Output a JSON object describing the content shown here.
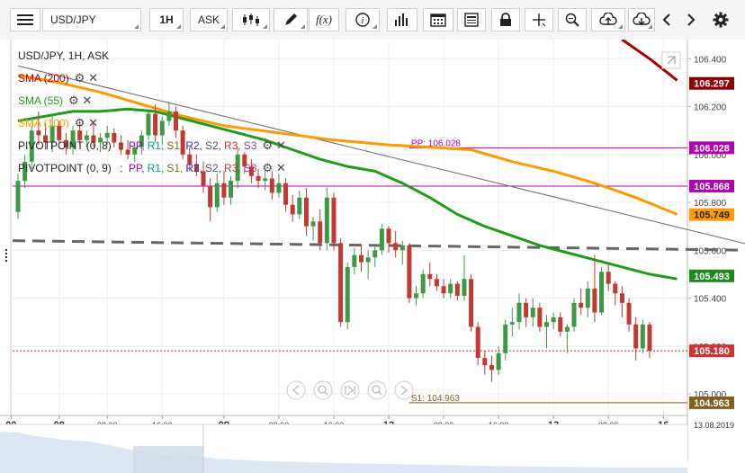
{
  "toolbar": {
    "symbol": "USD/JPY",
    "timeframe": "1H",
    "price_type": "ASK",
    "fx_label": "f(x)",
    "icons": [
      "menu-icon",
      "candlestick-icon",
      "draw-pencil-icon",
      "function-icon",
      "info-icon",
      "volume-bars-icon",
      "calendar-icon",
      "news-icon",
      "lock-icon",
      "crosshair-icon",
      "zoom-icon",
      "upload-icon",
      "download-icon",
      "chevron-left-icon",
      "chevron-right-icon",
      "gear-icon"
    ]
  },
  "legend": {
    "title": "USD/JPY, 1H, ASK",
    "sma200": "SMA (200)",
    "sma55": "SMA (55)",
    "sma100": "SMA (100)",
    "pivot1_name": "PIVOTPOINT (0, 8)",
    "pivot2_name": "PIVOTPOINT (0, 9)",
    "pivot_sep": ":",
    "pivot_items": [
      {
        "label": "PP",
        "color": "#b000b0"
      },
      {
        "label": "R1",
        "color": "#009999"
      },
      {
        "label": "S1",
        "color": "#806020"
      },
      {
        "label": "R2",
        "color": "#3030b0"
      },
      {
        "label": "S2",
        "color": "#555555"
      },
      {
        "label": "R3",
        "color": "#b04040"
      },
      {
        "label": "S3",
        "color": "#9a3a9a"
      }
    ]
  },
  "chart_data": {
    "type": "candlestick",
    "symbol": "USD/JPY",
    "interval": "1H",
    "ylim": [
      104.91,
      106.48
    ],
    "yticks": [
      106.4,
      106.2,
      106.0,
      105.8,
      105.6,
      105.4,
      105.2,
      105.0
    ],
    "ytick_labels": [
      "106.400",
      "106.200",
      "106.000",
      "105.800",
      "105.600",
      "105.400",
      "105.200",
      "105.000"
    ],
    "xticks": [
      {
        "label": "00",
        "pos": -1
      },
      {
        "label": "08",
        "pos": 6
      },
      {
        "label": "08:00",
        "pos": 13
      },
      {
        "label": "16:00",
        "pos": 21
      },
      {
        "label": "09",
        "pos": 30
      },
      {
        "label": "08:00",
        "pos": 38
      },
      {
        "label": "16:00",
        "pos": 46
      },
      {
        "label": "12",
        "pos": 54
      },
      {
        "label": "08:00",
        "pos": 62
      },
      {
        "label": "16:00",
        "pos": 70
      },
      {
        "label": "13",
        "pos": 78
      },
      {
        "label": "08:00",
        "pos": 86
      },
      {
        "label": "16",
        "pos": 94
      }
    ],
    "x_end_label": "13.08.2019",
    "candles": [
      [
        105.76,
        105.92,
        105.73,
        105.89
      ],
      [
        105.89,
        106.0,
        105.86,
        105.97
      ],
      [
        105.97,
        106.12,
        105.94,
        106.1
      ],
      [
        106.1,
        106.18,
        106.04,
        106.08
      ],
      [
        106.08,
        106.13,
        106.02,
        106.05
      ],
      [
        106.05,
        106.16,
        106.01,
        106.12
      ],
      [
        106.12,
        106.14,
        106.05,
        106.06
      ],
      [
        106.06,
        106.09,
        106.0,
        106.03
      ],
      [
        106.03,
        106.12,
        106.0,
        106.1
      ],
      [
        106.1,
        106.14,
        106.04,
        106.06
      ],
      [
        106.06,
        106.1,
        106.03,
        106.08
      ],
      [
        106.08,
        106.13,
        106.03,
        106.05
      ],
      [
        106.05,
        106.09,
        106.01,
        106.07
      ],
      [
        106.07,
        106.12,
        106.04,
        106.09
      ],
      [
        106.09,
        106.11,
        106.03,
        106.05
      ],
      [
        106.05,
        106.08,
        106.0,
        106.02
      ],
      [
        106.02,
        106.06,
        105.98,
        106.0
      ],
      [
        106.0,
        106.05,
        105.97,
        106.03
      ],
      [
        106.03,
        106.1,
        106.0,
        106.08
      ],
      [
        106.08,
        106.19,
        106.06,
        106.17
      ],
      [
        106.17,
        106.21,
        106.05,
        106.08
      ],
      [
        106.08,
        106.16,
        106.04,
        106.14
      ],
      [
        106.14,
        106.22,
        106.12,
        106.18
      ],
      [
        106.18,
        106.2,
        106.07,
        106.1
      ],
      [
        106.1,
        106.12,
        105.98,
        106.0
      ],
      [
        106.0,
        106.03,
        105.93,
        105.96
      ],
      [
        105.96,
        106.0,
        105.91,
        105.93
      ],
      [
        105.93,
        105.97,
        105.84,
        105.87
      ],
      [
        105.87,
        105.9,
        105.72,
        105.78
      ],
      [
        105.78,
        105.92,
        105.76,
        105.88
      ],
      [
        105.88,
        105.93,
        105.79,
        105.82
      ],
      [
        105.82,
        105.91,
        105.79,
        105.89
      ],
      [
        105.89,
        106.03,
        105.86,
        106.0
      ],
      [
        106.0,
        106.01,
        105.92,
        105.95
      ],
      [
        105.95,
        105.98,
        105.88,
        105.91
      ],
      [
        105.91,
        105.94,
        105.86,
        105.89
      ],
      [
        105.89,
        105.93,
        105.85,
        105.9
      ],
      [
        105.9,
        105.93,
        105.81,
        105.84
      ],
      [
        105.84,
        105.92,
        105.82,
        105.88
      ],
      [
        105.88,
        105.9,
        105.76,
        105.79
      ],
      [
        105.79,
        105.83,
        105.72,
        105.75
      ],
      [
        105.75,
        105.85,
        105.73,
        105.82
      ],
      [
        105.82,
        105.86,
        105.66,
        105.7
      ],
      [
        105.7,
        105.74,
        105.64,
        105.72
      ],
      [
        105.72,
        105.77,
        105.6,
        105.63
      ],
      [
        105.63,
        105.86,
        105.6,
        105.82
      ],
      [
        105.82,
        105.84,
        105.6,
        105.63
      ],
      [
        105.63,
        105.65,
        105.28,
        105.3
      ],
      [
        105.3,
        105.55,
        105.27,
        105.53
      ],
      [
        105.53,
        105.61,
        105.5,
        105.58
      ],
      [
        105.58,
        105.62,
        105.51,
        105.55
      ],
      [
        105.55,
        105.6,
        105.48,
        105.57
      ],
      [
        105.57,
        105.62,
        105.53,
        105.6
      ],
      [
        105.6,
        105.71,
        105.58,
        105.69
      ],
      [
        105.69,
        105.7,
        105.59,
        105.63
      ],
      [
        105.63,
        105.68,
        105.57,
        105.6
      ],
      [
        105.6,
        105.64,
        105.54,
        105.62
      ],
      [
        105.62,
        105.63,
        105.38,
        105.4
      ],
      [
        105.4,
        105.45,
        105.37,
        105.42
      ],
      [
        105.42,
        105.52,
        105.4,
        105.5
      ],
      [
        105.5,
        105.55,
        105.45,
        105.48
      ],
      [
        105.48,
        105.5,
        105.43,
        105.45
      ],
      [
        105.45,
        105.48,
        105.4,
        105.42
      ],
      [
        105.42,
        105.48,
        105.4,
        105.46
      ],
      [
        105.46,
        105.47,
        105.39,
        105.41
      ],
      [
        105.41,
        105.58,
        105.39,
        105.48
      ],
      [
        105.48,
        105.5,
        105.26,
        105.28
      ],
      [
        105.28,
        105.3,
        105.12,
        105.15
      ],
      [
        105.15,
        105.18,
        105.08,
        105.12
      ],
      [
        105.12,
        105.16,
        105.05,
        105.1
      ],
      [
        105.1,
        105.2,
        105.08,
        105.17
      ],
      [
        105.17,
        105.31,
        105.14,
        105.29
      ],
      [
        105.29,
        105.36,
        105.24,
        105.3
      ],
      [
        105.3,
        105.42,
        105.27,
        105.38
      ],
      [
        105.38,
        105.4,
        105.28,
        105.32
      ],
      [
        105.32,
        105.4,
        105.28,
        105.36
      ],
      [
        105.36,
        105.38,
        105.26,
        105.28
      ],
      [
        105.28,
        105.33,
        105.19,
        105.3
      ],
      [
        105.3,
        105.34,
        105.27,
        105.32
      ],
      [
        105.32,
        105.34,
        105.24,
        105.26
      ],
      [
        105.26,
        105.29,
        105.17,
        105.28
      ],
      [
        105.28,
        105.4,
        105.26,
        105.38
      ],
      [
        105.38,
        105.44,
        105.33,
        105.36
      ],
      [
        105.36,
        105.47,
        105.32,
        105.44
      ],
      [
        105.44,
        105.58,
        105.3,
        105.34
      ],
      [
        105.34,
        105.53,
        105.33,
        105.51
      ],
      [
        105.51,
        105.54,
        105.43,
        105.46
      ],
      [
        105.46,
        105.47,
        105.37,
        105.42
      ],
      [
        105.42,
        105.45,
        105.32,
        105.38
      ],
      [
        105.38,
        105.4,
        105.26,
        105.29
      ],
      [
        105.29,
        105.32,
        105.14,
        105.19
      ],
      [
        105.19,
        105.31,
        105.17,
        105.29
      ],
      [
        105.29,
        105.3,
        105.15,
        105.18
      ]
    ],
    "sma200": [
      [
        88,
        106.48
      ],
      [
        92,
        106.4
      ],
      [
        96,
        106.31
      ]
    ],
    "sma100": [
      [
        0,
        106.33
      ],
      [
        6,
        106.3
      ],
      [
        12,
        106.26
      ],
      [
        18,
        106.21
      ],
      [
        24,
        106.16
      ],
      [
        30,
        106.12
      ],
      [
        38,
        106.09
      ],
      [
        46,
        106.06
      ],
      [
        54,
        106.04
      ],
      [
        60,
        106.03
      ],
      [
        66,
        106.02
      ],
      [
        72,
        105.97
      ],
      [
        78,
        105.93
      ],
      [
        84,
        105.88
      ],
      [
        90,
        105.82
      ],
      [
        96,
        105.75
      ]
    ],
    "sma55": [
      [
        0,
        106.14
      ],
      [
        4,
        106.16
      ],
      [
        8,
        106.18
      ],
      [
        12,
        106.18
      ],
      [
        16,
        106.19
      ],
      [
        20,
        106.18
      ],
      [
        24,
        106.15
      ],
      [
        28,
        106.12
      ],
      [
        32,
        106.09
      ],
      [
        36,
        106.06
      ],
      [
        40,
        106.02
      ],
      [
        44,
        105.98
      ],
      [
        48,
        105.95
      ],
      [
        52,
        105.93
      ],
      [
        56,
        105.88
      ],
      [
        60,
        105.82
      ],
      [
        64,
        105.75
      ],
      [
        68,
        105.7
      ],
      [
        72,
        105.66
      ],
      [
        76,
        105.62
      ],
      [
        80,
        105.59
      ],
      [
        84,
        105.56
      ],
      [
        88,
        105.53
      ],
      [
        92,
        105.5
      ],
      [
        96,
        105.48
      ]
    ],
    "trendline": {
      "x1": 0,
      "y1": 106.37,
      "x2": 107,
      "y2": 105.62
    },
    "dashed_line": {
      "x1": 0,
      "y1": 105.64,
      "x2": 107,
      "y2": 105.6
    },
    "pivot_lines": [
      {
        "label": "PP: 106.028",
        "value": 106.028,
        "color": "#b000b0",
        "start": 57
      },
      {
        "label": "",
        "value": 105.868,
        "color": "#b000b0",
        "start": 0
      },
      {
        "label": "S1: 104.963",
        "value": 104.963,
        "color": "#806020",
        "start": 57
      }
    ],
    "current_price": 105.18,
    "price_labels": [
      {
        "value": 106.297,
        "text": "106.297",
        "bg": "#8b0000",
        "fg": "#ffffff"
      },
      {
        "value": 106.028,
        "text": "106.028",
        "bg": "#b000b0",
        "fg": "#ffffff"
      },
      {
        "value": 105.868,
        "text": "105.868",
        "bg": "#b000b0",
        "fg": "#ffffff"
      },
      {
        "value": 105.749,
        "text": "105.749",
        "bg": "#ff9a00",
        "fg": "#222222"
      },
      {
        "value": 105.493,
        "text": "105.493",
        "bg": "#1e8a1e",
        "fg": "#ffffff"
      },
      {
        "value": 105.18,
        "text": "105.180",
        "bg": "#cc3333",
        "fg": "#ffffff"
      },
      {
        "value": 104.963,
        "text": "104.963",
        "bg": "#806020",
        "fg": "#ffffff"
      }
    ],
    "colors": {
      "up": "#3c9a46",
      "down": "#c03a32",
      "sma200": "#a50000",
      "sma100": "#ff9a00",
      "sma55": "#229a1a",
      "trend": "#666666",
      "dashed": "#666666",
      "current": "#cc3333"
    }
  }
}
